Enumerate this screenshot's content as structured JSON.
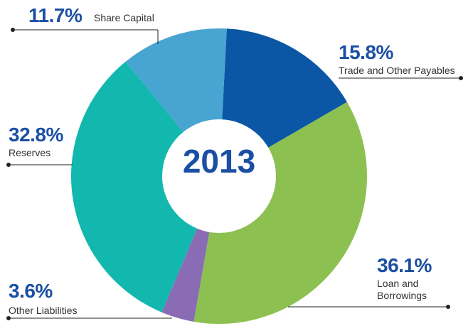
{
  "chart_data": {
    "type": "donut",
    "center_label": "2013",
    "categories": [
      "Trade and Other Payables",
      "Loan and Borrowings",
      "Other Liabilities",
      "Reserves",
      "Share Capital"
    ],
    "values": [
      15.8,
      36.1,
      3.6,
      32.8,
      11.7
    ],
    "value_labels": [
      "15.8%",
      "36.1%",
      "3.6%",
      "32.8%",
      "11.7%"
    ],
    "colors": [
      "#0b57a6",
      "#8cc151",
      "#8a6cb4",
      "#12b8ae",
      "#48a4d0"
    ]
  }
}
